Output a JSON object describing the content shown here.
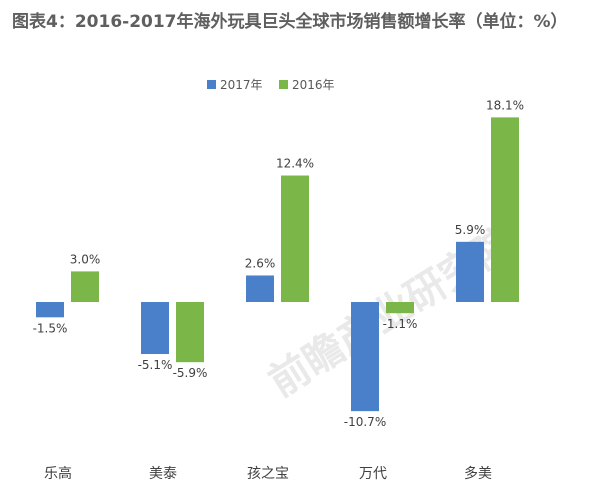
{
  "chart_data": {
    "type": "bar",
    "title": "图表4：2016-2017年海外玩具巨头全球市场销售额增长率（单位：%）",
    "categories": [
      "乐高",
      "美泰",
      "孩之宝",
      "万代",
      "多美"
    ],
    "series": [
      {
        "name": "2017年",
        "color": "#4a7fc9",
        "values": [
          -1.5,
          -5.1,
          2.6,
          -10.7,
          5.9
        ]
      },
      {
        "name": "2016年",
        "color": "#7ab648",
        "values": [
          3.0,
          -5.9,
          12.4,
          -1.1,
          18.1
        ]
      }
    ],
    "value_labels": [
      [
        "-1.5%",
        "-5.1%",
        "2.6%",
        "-10.7%",
        "5.9%"
      ],
      [
        "3.0%",
        "-5.9%",
        "12.4%",
        "-1.1%",
        "18.1%"
      ]
    ],
    "legend_position": "top-center",
    "grid": false
  },
  "watermark": {
    "text": "前瞻产业研究院"
  }
}
